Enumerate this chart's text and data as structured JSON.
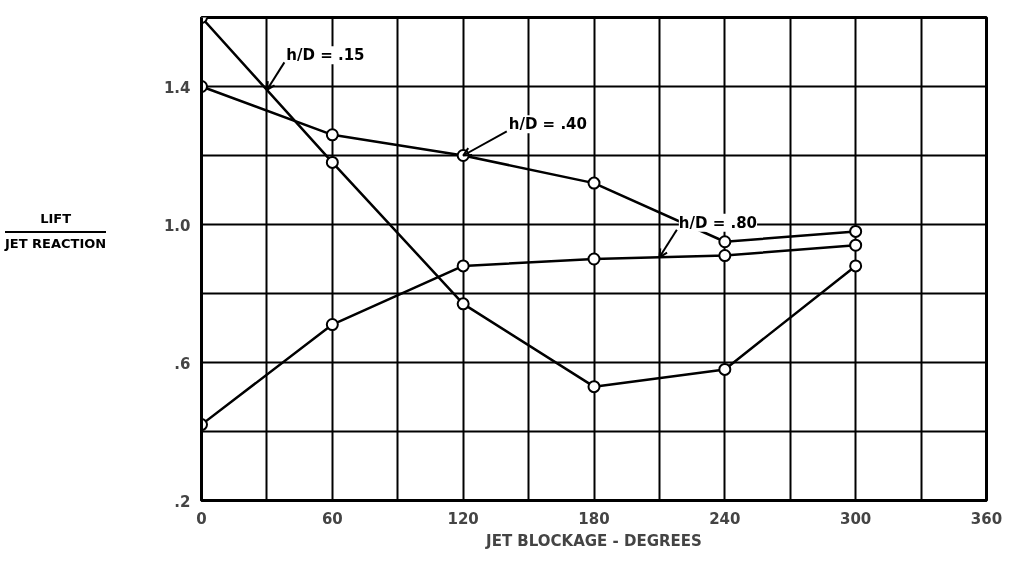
{
  "chart_data": {
    "type": "line",
    "xlabel": "JET BLOCKAGE - DEGREES",
    "ylabel": "LIFT\nJET REACTION",
    "x": [
      0,
      60,
      120,
      180,
      240,
      300
    ],
    "series": [
      {
        "name": "h/D = .15",
        "color": "#000000",
        "values": [
          1.6,
          1.18,
          0.77,
          0.53,
          0.58,
          0.88
        ]
      },
      {
        "name": "h/D = .40",
        "color": "#000000",
        "values": [
          1.4,
          1.26,
          1.2,
          1.12,
          0.95,
          0.98
        ]
      },
      {
        "name": "h/D = .80",
        "color": "#000000",
        "values": [
          0.42,
          0.71,
          0.88,
          0.9,
          0.91,
          0.94
        ]
      }
    ],
    "xlim": [
      0,
      360
    ],
    "ylim": [
      0.2,
      1.6
    ],
    "xticks": [
      0,
      {
        "value": 30,
        "label": null
      },
      60,
      {
        "value": 90,
        "label": null
      },
      120,
      {
        "value": 150,
        "label": null
      },
      180,
      {
        "value": 210,
        "label": null
      },
      240,
      {
        "value": 270,
        "label": null
      },
      300,
      {
        "value": 330,
        "label": null
      },
      360
    ],
    "yticks": [
      {
        "value": 0.2,
        "label": ".2"
      },
      {
        "value": 0.4,
        "label": null
      },
      {
        "value": 0.6,
        "label": ".6"
      },
      {
        "value": 0.8,
        "label": null
      },
      {
        "value": 1.0,
        "label": "1.0"
      },
      {
        "value": 1.2,
        "label": null
      },
      {
        "value": 1.4,
        "label": "1.4"
      },
      {
        "value": 1.6,
        "label": null
      }
    ],
    "grid": true,
    "marker": "circle",
    "line_style": "solid"
  }
}
